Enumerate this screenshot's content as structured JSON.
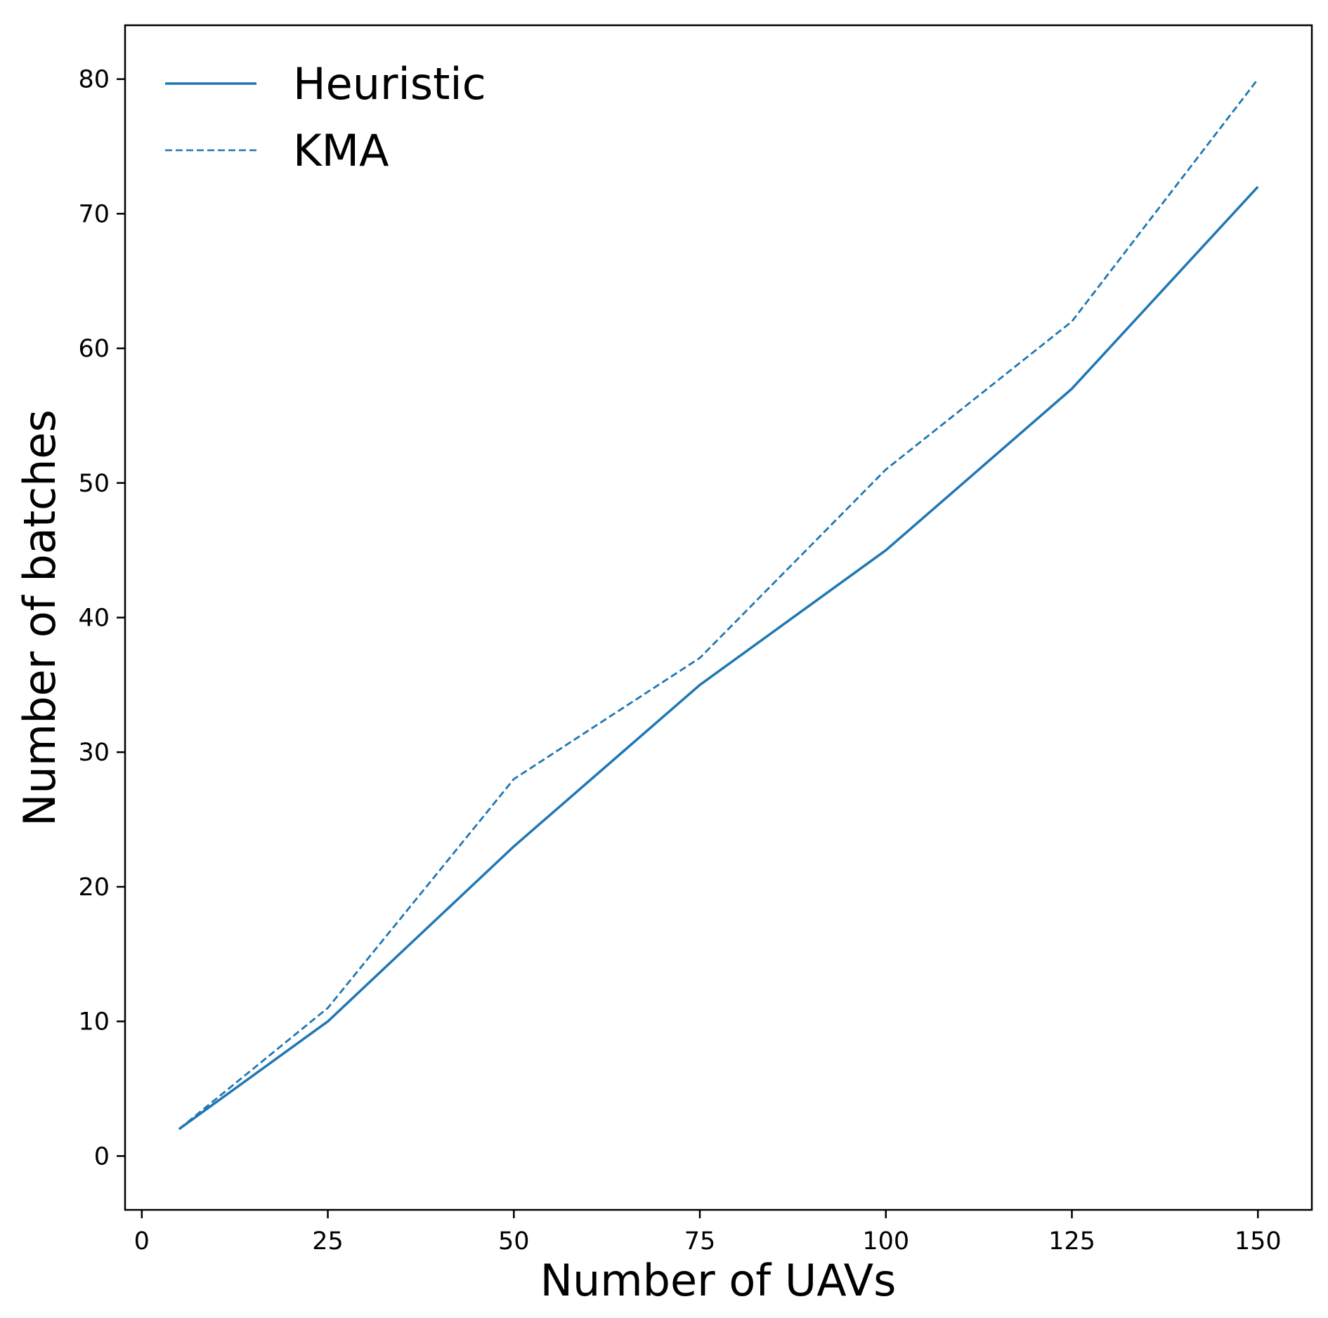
{
  "chart_data": {
    "type": "line",
    "title": "",
    "xlabel": "Number of UAVs",
    "ylabel": "Number of batches",
    "xlim": [
      -2.25,
      157.25
    ],
    "ylim": [
      -4,
      84
    ],
    "xticks": [
      0,
      25,
      50,
      75,
      100,
      125,
      150
    ],
    "yticks": [
      0,
      10,
      20,
      30,
      40,
      50,
      60,
      70,
      80
    ],
    "x": [
      5,
      25,
      50,
      75,
      100,
      125,
      150
    ],
    "series": [
      {
        "name": "Heuristic",
        "style": "solid",
        "color": "#1f77b4",
        "values": [
          2,
          10,
          23,
          35,
          45,
          57,
          72
        ]
      },
      {
        "name": "KMA",
        "style": "dashed",
        "color": "#1f77b4",
        "values": [
          2,
          11,
          28,
          37,
          51,
          62,
          80
        ]
      }
    ],
    "legend": {
      "position": "upper-left"
    },
    "grid": false
  }
}
